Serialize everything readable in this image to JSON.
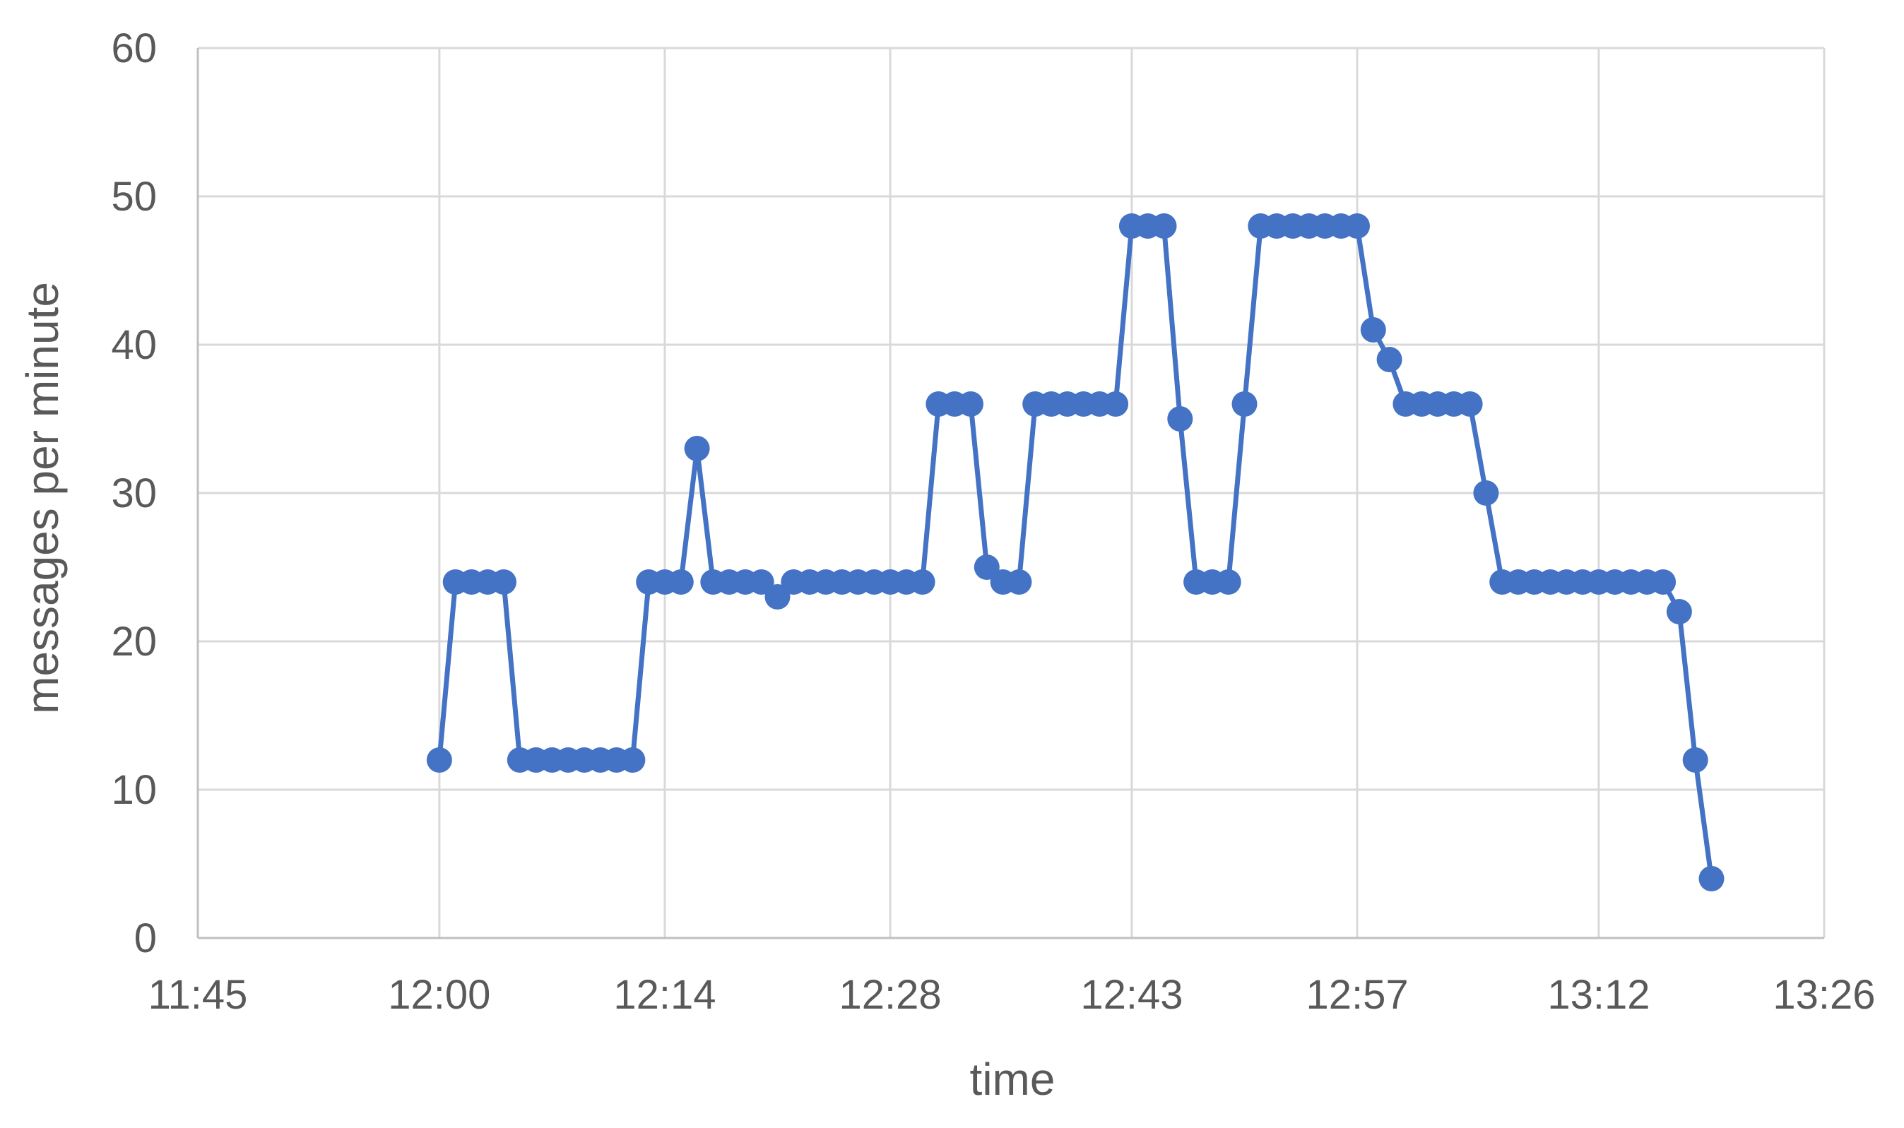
{
  "chart_data": {
    "type": "line",
    "title": "",
    "xlabel": "time",
    "ylabel": "messages per minute",
    "x_tick_labels": [
      "11:45",
      "12:00",
      "12:14",
      "12:28",
      "12:43",
      "12:57",
      "13:12",
      "13:26"
    ],
    "y_tick_labels": [
      "0",
      "10",
      "20",
      "30",
      "40",
      "50",
      "60"
    ],
    "xlim": [
      "11:45",
      "13:26"
    ],
    "ylim": [
      0,
      60
    ],
    "grid": true,
    "legend": "none",
    "line_color": "#4472c4",
    "marker": "circle",
    "series": [
      {
        "x": [
          "12:00",
          "12:01",
          "12:02",
          "12:03",
          "12:04",
          "12:05",
          "12:06",
          "12:07",
          "12:08",
          "12:09",
          "12:10",
          "12:11",
          "12:12",
          "12:13",
          "12:14",
          "12:15",
          "12:16",
          "12:17",
          "12:18",
          "12:19",
          "12:20",
          "12:21",
          "12:22",
          "12:23",
          "12:24",
          "12:25",
          "12:26",
          "12:27",
          "12:28",
          "12:29",
          "12:30",
          "12:31",
          "12:32",
          "12:33",
          "12:34",
          "12:35",
          "12:36",
          "12:37",
          "12:38",
          "12:39",
          "12:40",
          "12:41",
          "12:42",
          "12:43",
          "12:44",
          "12:45",
          "12:46",
          "12:47",
          "12:48",
          "12:49",
          "12:50",
          "12:51",
          "12:52",
          "12:53",
          "12:54",
          "12:55",
          "12:56",
          "12:57",
          "12:58",
          "12:59",
          "13:00",
          "13:01",
          "13:02",
          "13:03",
          "13:04",
          "13:05",
          "13:06",
          "13:07",
          "13:08",
          "13:09",
          "13:10",
          "13:11",
          "13:12",
          "13:13",
          "13:14",
          "13:15",
          "13:16",
          "13:17",
          "13:18",
          "13:19"
        ],
        "values": [
          12,
          24,
          24,
          24,
          24,
          12,
          12,
          12,
          12,
          12,
          12,
          12,
          12,
          24,
          24,
          24,
          33,
          24,
          24,
          24,
          24,
          23,
          24,
          24,
          24,
          24,
          24,
          24,
          24,
          24,
          24,
          36,
          36,
          36,
          25,
          24,
          24,
          36,
          36,
          36,
          36,
          36,
          36,
          48,
          48,
          48,
          35,
          24,
          24,
          24,
          36,
          48,
          48,
          48,
          48,
          48,
          48,
          48,
          41,
          39,
          36,
          36,
          36,
          36,
          36,
          30,
          24,
          24,
          24,
          24,
          24,
          24,
          24,
          24,
          24,
          24,
          24,
          22,
          12,
          4
        ]
      }
    ]
  }
}
